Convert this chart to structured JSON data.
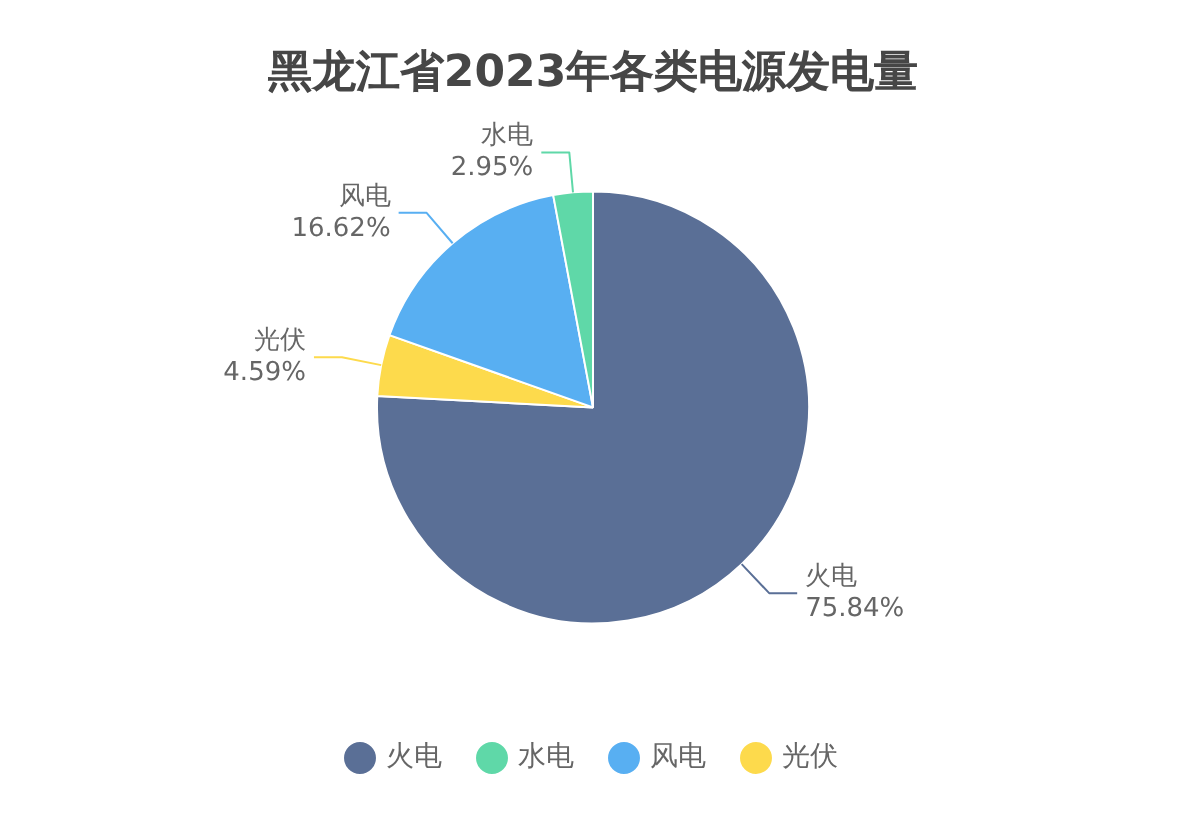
{
  "chart_data": {
    "type": "pie",
    "title": "黑龙江省2023年各类电源发电量",
    "categories": [
      "火电",
      "水电",
      "风电",
      "光伏"
    ],
    "values": [
      75.84,
      2.95,
      16.62,
      4.59
    ],
    "value_labels": [
      "75.84%",
      "2.95%",
      "16.62%",
      "4.59%"
    ],
    "colors": [
      "#5a6f96",
      "#5fd8a8",
      "#58aff2",
      "#fdda4c"
    ],
    "legend": "bottom"
  }
}
